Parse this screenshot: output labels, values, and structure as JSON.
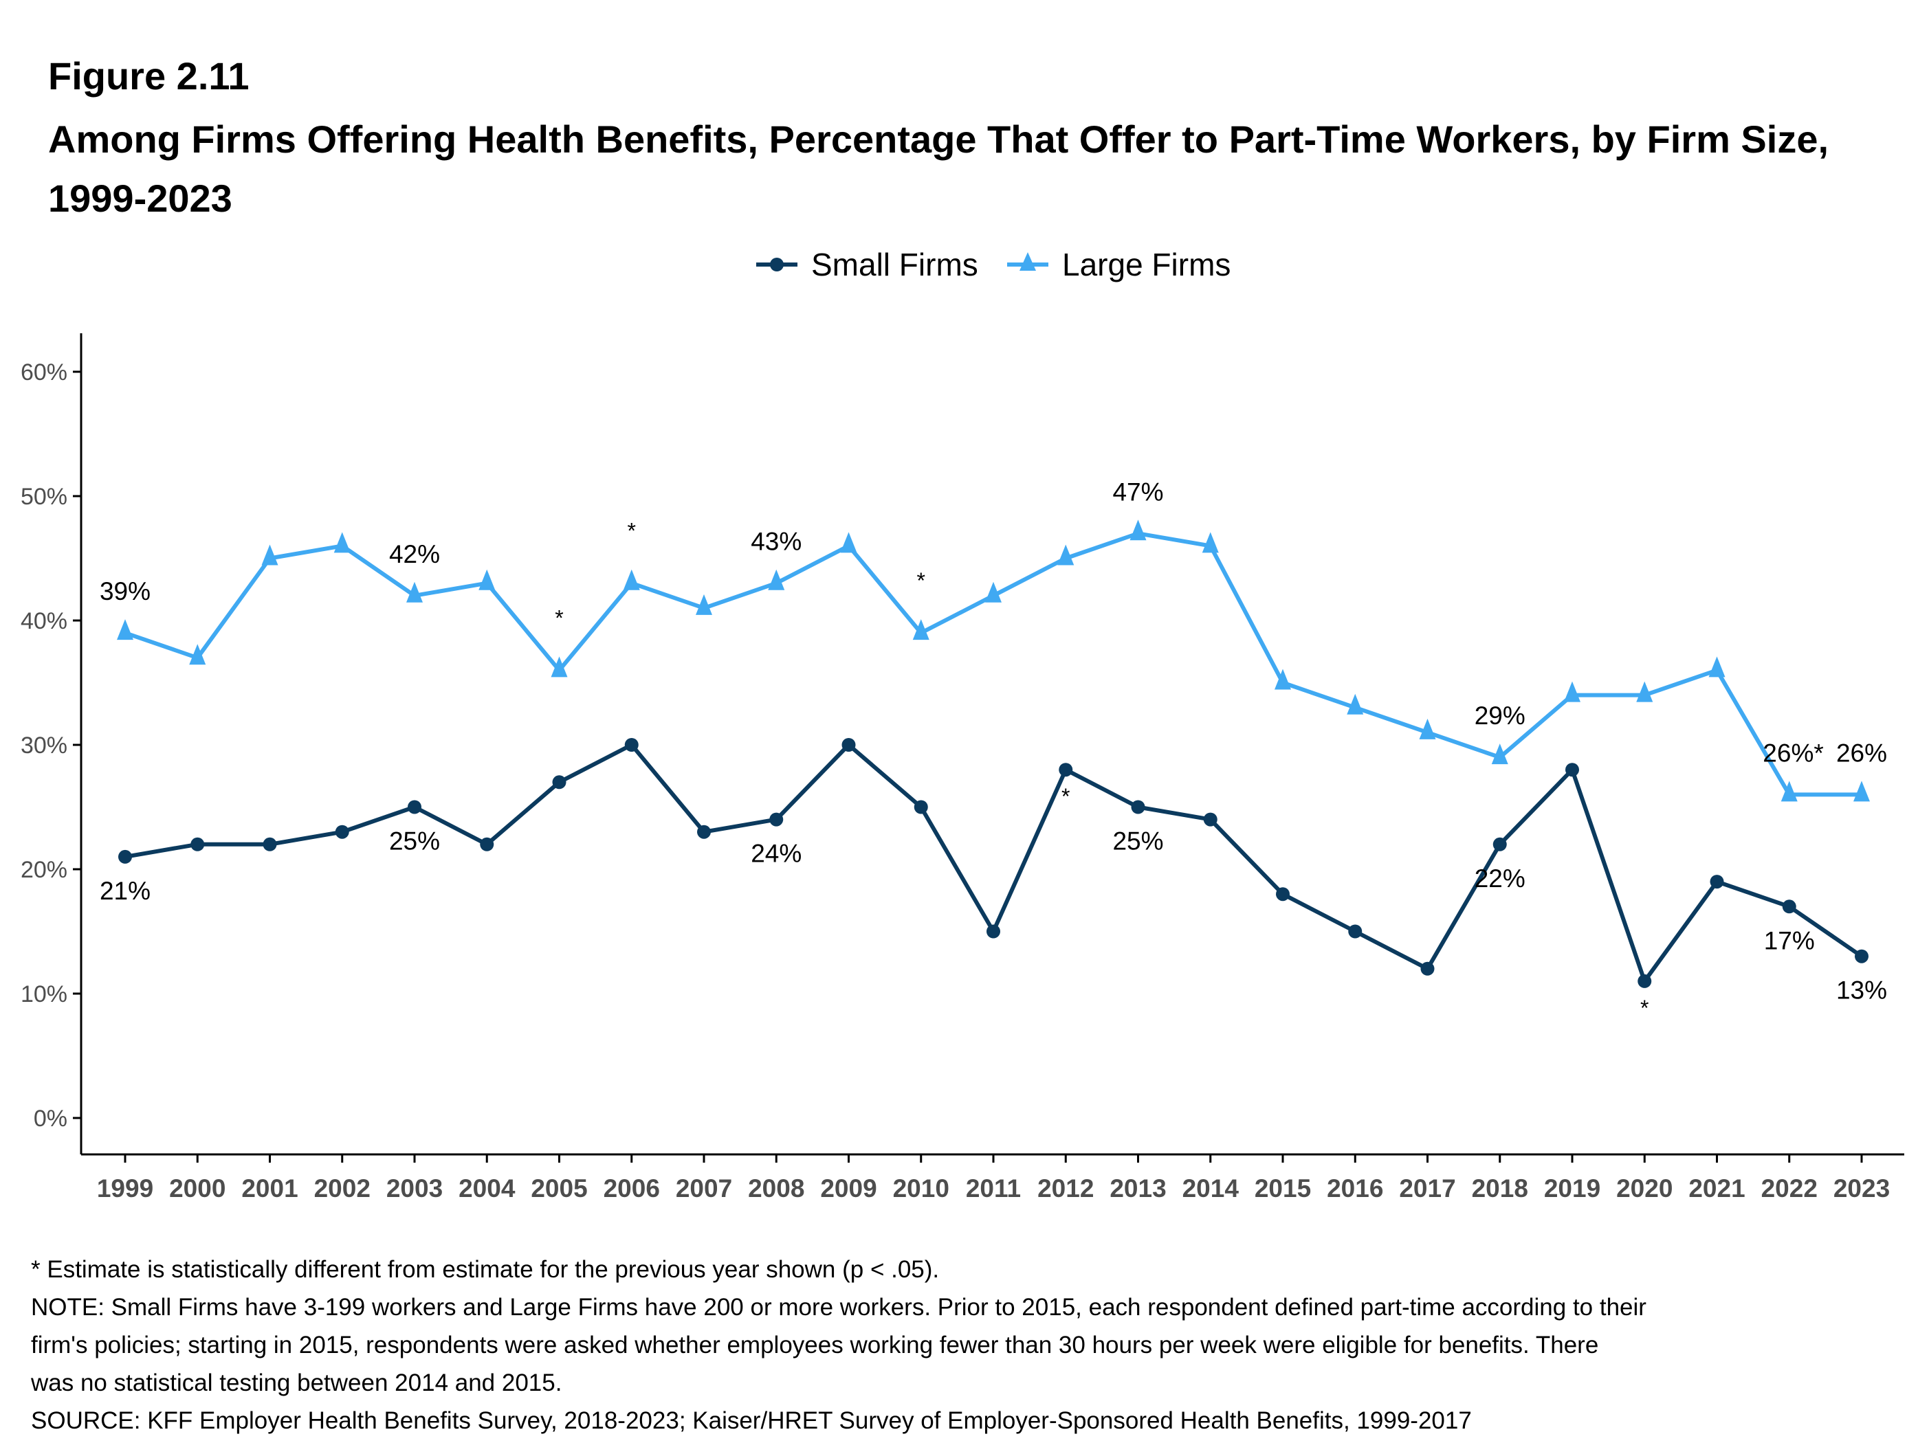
{
  "figure_label": "Figure 2.11",
  "title": "Among Firms Offering Health Benefits, Percentage That Offer to Part-Time Workers, by Firm Size, 1999-2023",
  "colors": {
    "small": "#0b3a5e",
    "large": "#40a9f2",
    "axis": "#000000",
    "tick_label": "#4d4d4d"
  },
  "chart_data": {
    "type": "line",
    "title": "Among Firms Offering Health Benefits, Percentage That Offer to Part-Time Workers, by Firm Size, 1999-2023",
    "xlabel": "",
    "ylabel": "",
    "ylim": [
      0,
      60
    ],
    "grid": false,
    "legend_position": "top-center",
    "y_ticks": [
      0,
      10,
      20,
      30,
      40,
      50,
      60
    ],
    "y_tick_labels": [
      "0%",
      "10%",
      "20%",
      "30%",
      "40%",
      "50%",
      "60%"
    ],
    "x": [
      "1999",
      "2000",
      "2001",
      "2002",
      "2003",
      "2004",
      "2005",
      "2006",
      "2007",
      "2008",
      "2009",
      "2010",
      "2011",
      "2012",
      "2013",
      "2014",
      "2015",
      "2016",
      "2017",
      "2018",
      "2019",
      "2020",
      "2021",
      "2022",
      "2023"
    ],
    "series": [
      {
        "name": "Small Firms",
        "marker": "circle",
        "values": [
          21,
          22,
          22,
          23,
          25,
          22,
          27,
          30,
          23,
          24,
          30,
          25,
          15,
          28,
          25,
          24,
          18,
          15,
          12,
          22,
          28,
          11,
          19,
          17,
          13
        ],
        "labels": [
          {
            "year": "1999",
            "text": "21%"
          },
          {
            "year": "2003",
            "text": "25%"
          },
          {
            "year": "2008",
            "text": "24%"
          },
          {
            "year": "2013",
            "text": "25%"
          },
          {
            "year": "2018",
            "text": "22%"
          },
          {
            "year": "2022",
            "text": "17%"
          },
          {
            "year": "2023",
            "text": "13%"
          }
        ],
        "significance_marks": [
          {
            "year": "2012",
            "text": "*"
          },
          {
            "year": "2020",
            "text": "*"
          }
        ]
      },
      {
        "name": "Large Firms",
        "marker": "triangle",
        "values": [
          39,
          37,
          45,
          46,
          42,
          43,
          36,
          43,
          41,
          43,
          46,
          39,
          42,
          45,
          47,
          46,
          35,
          33,
          31,
          29,
          34,
          34,
          36,
          26,
          26
        ],
        "labels": [
          {
            "year": "1999",
            "text": "39%"
          },
          {
            "year": "2003",
            "text": "42%"
          },
          {
            "year": "2008",
            "text": "43%"
          },
          {
            "year": "2013",
            "text": "47%"
          },
          {
            "year": "2018",
            "text": "29%"
          },
          {
            "year": "2022",
            "text": "26%*"
          },
          {
            "year": "2023",
            "text": "26%"
          }
        ],
        "significance_marks": [
          {
            "year": "2005",
            "text": "*"
          },
          {
            "year": "2006",
            "text": "*"
          },
          {
            "year": "2010",
            "text": "*"
          }
        ]
      }
    ]
  },
  "notes": [
    "* Estimate is statistically different from estimate for the previous year shown (p < .05).",
    "NOTE: Small Firms have 3-199 workers and Large Firms have 200 or more workers. Prior to 2015, each respondent defined part-time according to their",
    "firm's policies; starting in 2015, respondents were asked whether employees working fewer than 30 hours per week were eligible for benefits. There",
    "was no statistical testing between 2014 and 2015.",
    "SOURCE: KFF Employer Health Benefits Survey, 2018-2023; Kaiser/HRET Survey of Employer-Sponsored Health Benefits, 1999-2017"
  ]
}
